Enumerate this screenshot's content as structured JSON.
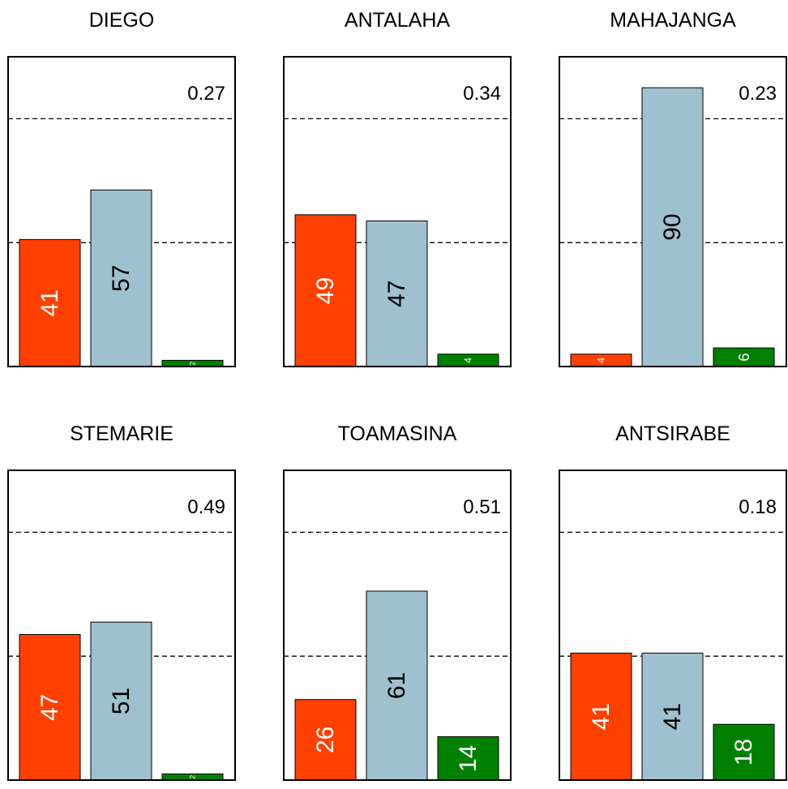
{
  "chart_data": {
    "type": "bar",
    "ylim": [
      0,
      100
    ],
    "reference_lines": [
      40,
      80
    ],
    "series_colors": [
      "#ff4000",
      "#9fc0ce",
      "#008000"
    ],
    "label_colors": [
      "#ffffff",
      "#000000",
      "#ffffff"
    ],
    "panels": [
      {
        "title": "DIEGO",
        "value": "0.27",
        "bars": [
          41,
          57,
          2
        ]
      },
      {
        "title": "ANTALAHA",
        "value": "0.34",
        "bars": [
          49,
          47,
          4
        ]
      },
      {
        "title": "MAHAJANGA",
        "value": "0.23",
        "bars": [
          4,
          90,
          6
        ]
      },
      {
        "title": "STEMARIE",
        "value": "0.49",
        "bars": [
          47,
          51,
          2
        ]
      },
      {
        "title": "TOAMASINA",
        "value": "0.51",
        "bars": [
          26,
          61,
          14
        ]
      },
      {
        "title": "ANTSIRABE",
        "value": "0.18",
        "bars": [
          41,
          41,
          18
        ]
      }
    ]
  }
}
